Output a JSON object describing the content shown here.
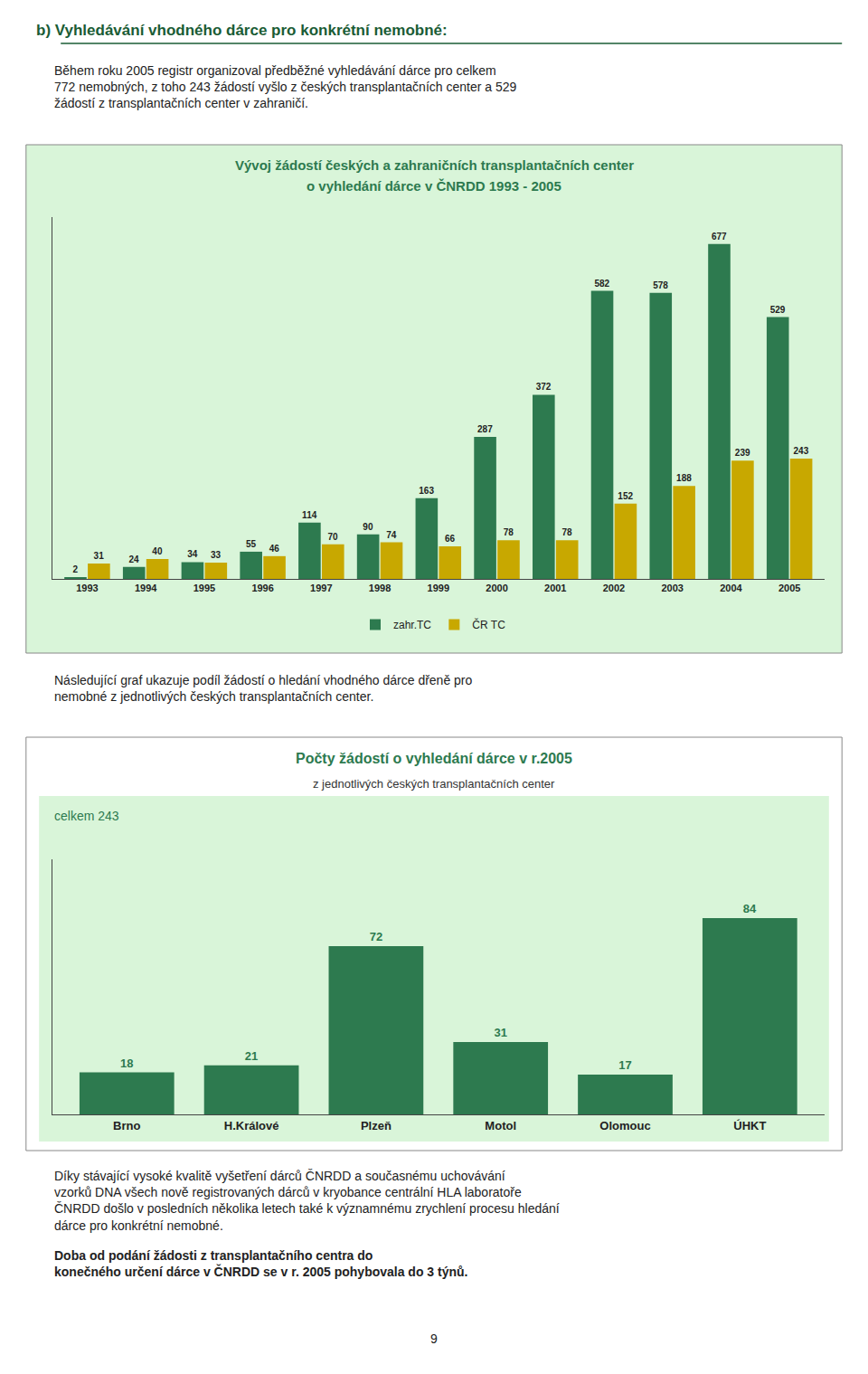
{
  "chart_data": [
    {
      "type": "bar",
      "title": "Vývoj žádostí českých a zahraničních transplantačních center",
      "subtitle": "o vyhledání dárce v ČNRDD 1993 - 2005",
      "annotations": [
        "b) Vyhledávání vhodného dárce pro konkrétní nemobné:",
        "Během roku 2005 registr organizoval předběžné vyhledávání dárce pro celkem\n772 nemobných, z toho 243 žádostí vyšlo z českých transplantačních center a 529\nžádostí z transplantačních center v zahraničí."
      ],
      "categories": [
        "1993",
        "1994",
        "1995",
        "1996",
        "1997",
        "1998",
        "1999",
        "2000",
        "2001",
        "2002",
        "2003",
        "2004",
        "2005"
      ],
      "series": [
        {
          "name": "zahr.TC",
          "color": "#2d7a4f",
          "values": [
            2,
            24,
            34,
            55,
            114,
            90,
            163,
            287,
            372,
            582,
            578,
            677,
            529
          ]
        },
        {
          "name": "ČR TC",
          "color": "#c8a800",
          "values": [
            31,
            40,
            33,
            46,
            70,
            74,
            66,
            78,
            78,
            152,
            188,
            239,
            243
          ]
        }
      ],
      "ylim": [
        0,
        731.16
      ],
      "tick_labels": "x",
      "grid": false,
      "legend": "bottom",
      "data_labels": true
    },
    {
      "type": "bar",
      "title": "Počty žádostí o vyhledání dárce v r.2005",
      "subtitle": "z jednotlivých českých transplantačních center",
      "annotations": [
        "Následující graf ukazuje podíl žádostí o hledání vhodného dárce dřeně pro\nnemobné z jednotlivých českých transplantačních center.",
        "celkem 243",
        "Díky stávající vysoké kvalitě vyšetření dárců ČNRDD a současnému uchovávání\nvzorků DNA všech nově registrovaných dárců v kryobance centrální HLA laboratoře\nČNRDD došlo v posledních několika letech také k významnému zrychlení procesu hledání\ndárce pro konkrétní nemobné.",
        "Doba od podání žádosti z transplantačního centra do\nkonečného určení dárce v ČNRDD se v r. 2005 pohybovala do 3 týnů.",
        "9"
      ],
      "categories": [
        "Brno",
        "H.Králové",
        "Plzeň",
        "Motol",
        "Olomouc",
        "ÚHKT"
      ],
      "values": [
        18,
        21,
        72,
        31,
        17,
        84
      ],
      "color": "#2d7a4f",
      "ylim": [
        0,
        109.2
      ],
      "tick_labels": "x",
      "grid": false,
      "data_labels": true
    }
  ]
}
